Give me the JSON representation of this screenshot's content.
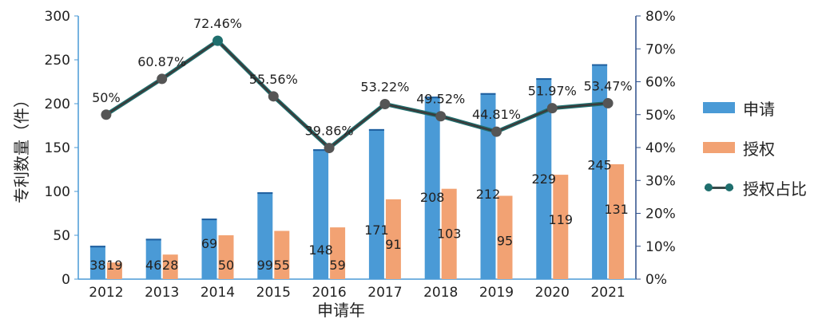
{
  "chart_data": {
    "type": "bar",
    "categories": [
      "2012",
      "2013",
      "2014",
      "2015",
      "2016",
      "2017",
      "2018",
      "2019",
      "2020",
      "2021"
    ],
    "series": [
      {
        "name": "申请",
        "type": "bar",
        "axis": "left",
        "color": "#4a9ad6",
        "values": [
          38,
          46,
          69,
          99,
          148,
          171,
          208,
          212,
          229,
          245
        ]
      },
      {
        "name": "授权",
        "type": "bar",
        "axis": "left",
        "color": "#f2a273",
        "values": [
          19,
          28,
          50,
          55,
          59,
          91,
          103,
          95,
          119,
          131
        ]
      },
      {
        "name": "授权占比",
        "type": "line",
        "axis": "right",
        "color": "#1f6f6e",
        "values": [
          50,
          60.87,
          72.46,
          55.56,
          39.86,
          53.22,
          49.52,
          44.81,
          51.97,
          53.47
        ],
        "labels": [
          "50%",
          "60.87%",
          "72.46%",
          "55.56%",
          "39.86%",
          "53.22%",
          "49.52%",
          "44.81%",
          "51.97%",
          "53.47%"
        ]
      }
    ],
    "xlabel": "申请年",
    "ylabel": "专利数量（件）",
    "ylim": [
      0,
      300
    ],
    "yticks": [
      "0",
      "50",
      "100",
      "150",
      "200",
      "250",
      "300"
    ],
    "y2lim": [
      0,
      80
    ],
    "y2ticks": [
      "0%",
      "10%",
      "20%",
      "30%",
      "40%",
      "50%",
      "60%",
      "70%",
      "80%"
    ],
    "legend_position": "right",
    "grid": false
  },
  "legend": [
    {
      "label": "申请",
      "kind": "bar",
      "color": "#4a9ad6"
    },
    {
      "label": "授权",
      "kind": "bar",
      "color": "#f2a273"
    },
    {
      "label": "授权占比",
      "kind": "line",
      "color": "#1f6f6e"
    }
  ]
}
